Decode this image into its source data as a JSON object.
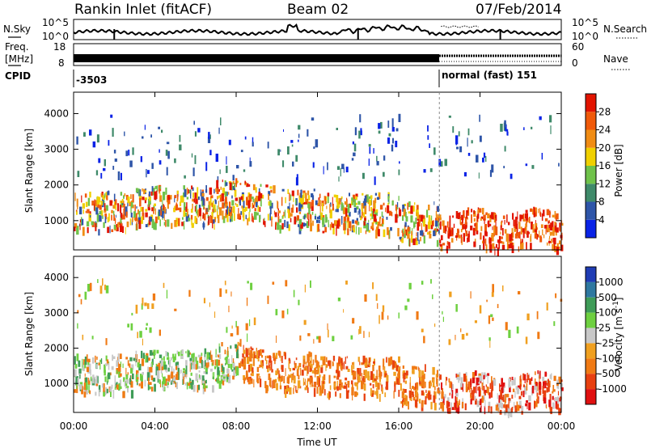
{
  "header": {
    "station": "Rankin Inlet (fitACF)",
    "beam": "Beam 02",
    "date": "07/Feb/2014"
  },
  "strip_labels": {
    "nsky": "N.Sky",
    "freq_line1": "Freq.",
    "freq_line2": "[MHz]",
    "cpid": "CPID",
    "nsearch": "N.Search",
    "nave": "Nave"
  },
  "strip_ticks": {
    "noise_left_top": "10^5",
    "noise_left_bottom": "10^0",
    "noise_right_top": "10^5",
    "noise_right_bottom": "10^0",
    "freq_left_top": "18",
    "freq_left_bottom": "8",
    "nave_right_top": "60",
    "nave_right_bottom": "0"
  },
  "cpid": {
    "left": "-3503",
    "right": "normal (fast) 151",
    "switch_time_hr": 18
  },
  "chart_data": [
    {
      "type": "heatmap",
      "name": "power",
      "ylabel": "Slant Range [km]",
      "xlabel": "Time UT",
      "x_range_hr": [
        0,
        24
      ],
      "ylim": [
        180,
        4600
      ],
      "yticks": [
        1000,
        2000,
        3000,
        4000
      ],
      "colorbar": {
        "label": "Power [dB]",
        "ticks": [
          "4",
          "8",
          "12",
          "16",
          "20",
          "24",
          "28"
        ],
        "colors": [
          "#0a23e6",
          "#2e55a8",
          "#3f8a6a",
          "#6fc24a",
          "#f0d000",
          "#f08c14",
          "#f05a0a",
          "#e21400"
        ]
      }
    },
    {
      "type": "heatmap",
      "name": "velocity",
      "ylabel": "Slant Range [km]",
      "xlabel": "Time UT",
      "x_range_hr": [
        0,
        24
      ],
      "ylim": [
        180,
        4600
      ],
      "yticks": [
        1000,
        2000,
        3000,
        4000
      ],
      "colorbar": {
        "label": "Velocity [m s^-1]",
        "ticks": [
          "1000",
          "500",
          "100",
          "25",
          "-25",
          "-100",
          "-500",
          "-1000"
        ],
        "colors": [
          "#1f3cb4",
          "#2f78a0",
          "#3f9c58",
          "#6ed040",
          "#c8c8c8",
          "#f0a020",
          "#f07a14",
          "#e84010",
          "#e01010"
        ]
      }
    }
  ],
  "xaxis": {
    "title": "Time UT",
    "ticks": [
      "00:00",
      "04:00",
      "08:00",
      "12:00",
      "16:00",
      "20:00",
      "00:00"
    ]
  }
}
